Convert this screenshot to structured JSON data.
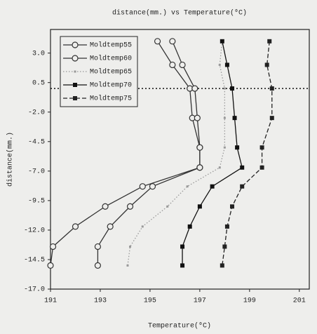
{
  "chart_data": {
    "type": "line",
    "title": "distance(mm.) vs Temperature(⁰C)",
    "x_label": "Temperature(⁰C)",
    "y_label": "distance(mm.)",
    "y": [
      4,
      2,
      0,
      -2.5,
      -5,
      -6.7,
      -8.3,
      -10,
      -11.7,
      -13.4,
      -15
    ],
    "series": [
      {
        "name": "Moldtemp55",
        "color": "#333333",
        "marker": "circle",
        "dash": "solid",
        "x": [
          195.3,
          195.9,
          196.6,
          196.7,
          197.0,
          197.0,
          194.7,
          193.2,
          192.0,
          191.1,
          191.0
        ]
      },
      {
        "name": "Moldtemp60",
        "color": "#333333",
        "marker": "circle",
        "dash": "solid",
        "x": [
          195.9,
          196.3,
          196.8,
          196.9,
          197.0,
          197.0,
          195.1,
          194.2,
          193.4,
          192.9,
          192.9
        ]
      },
      {
        "name": "Moldtemp65",
        "color": "#999999",
        "marker": "square-small",
        "dash": "dotted",
        "x": [
          197.9,
          197.8,
          198.0,
          198.0,
          198.0,
          197.8,
          196.5,
          195.7,
          194.7,
          194.2,
          194.1
        ]
      },
      {
        "name": "Moldtemp70",
        "color": "#111111",
        "marker": "square",
        "dash": "solid",
        "x": [
          197.9,
          198.1,
          198.3,
          198.4,
          198.5,
          198.7,
          197.5,
          197.0,
          196.6,
          196.3,
          196.3
        ]
      },
      {
        "name": "Moldtemp75",
        "color": "#222222",
        "marker": "square",
        "dash": "dashed",
        "x": [
          199.8,
          199.7,
          199.9,
          199.9,
          199.5,
          199.5,
          198.7,
          198.3,
          198.1,
          198.0,
          197.9
        ]
      }
    ],
    "hline": 0,
    "xlim": [
      191,
      201.4
    ],
    "ylim": [
      -17,
      5
    ],
    "xticks": [
      191,
      193,
      195,
      197,
      199,
      201
    ],
    "yticks": [
      {
        "value": 3,
        "label": "3.0"
      },
      {
        "value": 0.5,
        "label": "0.5"
      },
      {
        "value": -2,
        "label": "-2.0"
      },
      {
        "value": -4.5,
        "label": "-4.5"
      },
      {
        "value": -7,
        "label": "-7.0"
      },
      {
        "value": -9.5,
        "label": "-9.5"
      },
      {
        "value": -12,
        "label": "-12.0"
      },
      {
        "value": -14.5,
        "label": "-14.5"
      },
      {
        "value": -17,
        "label": "-17.0"
      }
    ],
    "legend": "upper-left"
  }
}
